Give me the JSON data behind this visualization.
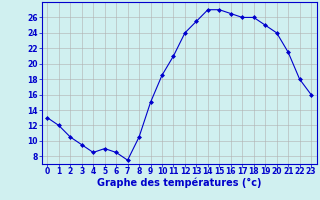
{
  "hours": [
    0,
    1,
    2,
    3,
    4,
    5,
    6,
    7,
    8,
    9,
    10,
    11,
    12,
    13,
    14,
    15,
    16,
    17,
    18,
    19,
    20,
    21,
    22,
    23
  ],
  "temperatures": [
    13.0,
    12.0,
    10.5,
    9.5,
    8.5,
    9.0,
    8.5,
    7.5,
    10.5,
    15.0,
    18.5,
    21.0,
    24.0,
    25.5,
    27.0,
    27.0,
    26.5,
    26.0,
    26.0,
    25.0,
    24.0,
    21.5,
    18.0,
    16.0
  ],
  "line_color": "#0000cc",
  "marker": "D",
  "marker_size": 2.0,
  "bg_color": "#d0f0f0",
  "grid_color": "#b0b0b0",
  "xlabel": "Graphe des températures (°c)",
  "xlabel_color": "#0000cc",
  "ylim": [
    7,
    28
  ],
  "yticks": [
    8,
    10,
    12,
    14,
    16,
    18,
    20,
    22,
    24,
    26
  ],
  "xticks": [
    0,
    1,
    2,
    3,
    4,
    5,
    6,
    7,
    8,
    9,
    10,
    11,
    12,
    13,
    14,
    15,
    16,
    17,
    18,
    19,
    20,
    21,
    22,
    23
  ],
  "tick_label_color": "#0000cc",
  "tick_label_fontsize": 5.5,
  "xlabel_fontsize": 7.0,
  "spine_color": "#0000cc"
}
